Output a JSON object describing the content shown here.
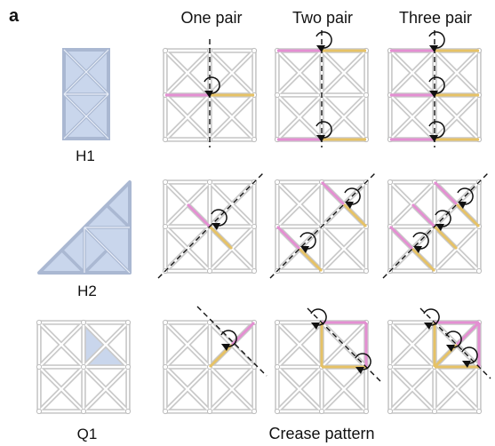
{
  "panel_letter": "a",
  "columns": [
    "One pair",
    "Two pair",
    "Three pair"
  ],
  "rows": [
    "H1",
    "H2",
    "Q1"
  ],
  "caption": "Crease pattern",
  "colors": {
    "beam": "#c9c9c9",
    "tile_fill": "#c9d6ec",
    "tile_edge": "#aab8d2",
    "pink": "#e48fd2",
    "yellow": "#e6c266",
    "axis": "#111111"
  },
  "icons": {
    "rotation": "rotation-arrow-icon",
    "fold_axis": "dashed-fold-axis"
  }
}
